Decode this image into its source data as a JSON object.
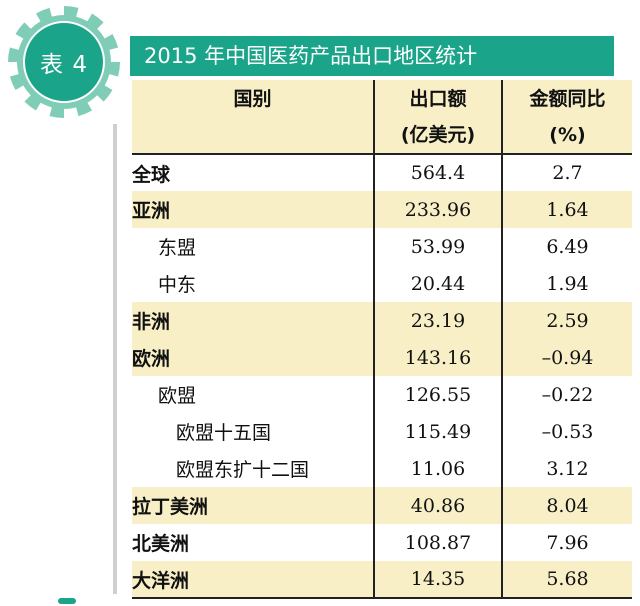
{
  "badge": {
    "label": "表 4"
  },
  "title": "2015 年中国医药产品出口地区统计",
  "table": {
    "headers": {
      "region": "国别",
      "export_line1": "出口额",
      "export_line2": "(亿美元)",
      "yoy_line1": "金额同比",
      "yoy_line2": "(%)"
    },
    "rows": [
      {
        "name": "全球",
        "export": "564.4",
        "yoy": "2.7",
        "level": 0,
        "highlight": false
      },
      {
        "name": "亚洲",
        "export": "233.96",
        "yoy": "1.64",
        "level": 0,
        "highlight": true
      },
      {
        "name": "东盟",
        "export": "53.99",
        "yoy": "6.49",
        "level": 1,
        "highlight": false
      },
      {
        "name": "中东",
        "export": "20.44",
        "yoy": "1.94",
        "level": 1,
        "highlight": false
      },
      {
        "name": "非洲",
        "export": "23.19",
        "yoy": "2.59",
        "level": 0,
        "highlight": true
      },
      {
        "name": "欧洲",
        "export": "143.16",
        "yoy": "–0.94",
        "level": 0,
        "highlight": true
      },
      {
        "name": "欧盟",
        "export": "126.55",
        "yoy": "–0.22",
        "level": 1,
        "highlight": false
      },
      {
        "name": "欧盟十五国",
        "export": "115.49",
        "yoy": "–0.53",
        "level": 2,
        "highlight": false
      },
      {
        "name": "欧盟东扩十二国",
        "export": "11.06",
        "yoy": "3.12",
        "level": 2,
        "highlight": false
      },
      {
        "name": "拉丁美洲",
        "export": "40.86",
        "yoy": "8.04",
        "level": 0,
        "highlight": true
      },
      {
        "name": "北美洲",
        "export": "108.87",
        "yoy": "7.96",
        "level": 0,
        "highlight": false
      },
      {
        "name": "大洋洲",
        "export": "14.35",
        "yoy": "5.68",
        "level": 0,
        "highlight": true
      }
    ]
  },
  "colors": {
    "accent": "#1aa489",
    "badge_outer": "#7fcdb7",
    "badge_inner": "#1aa489",
    "header_bg": "#f8efc6",
    "row_highlight": "#f8efc6"
  }
}
